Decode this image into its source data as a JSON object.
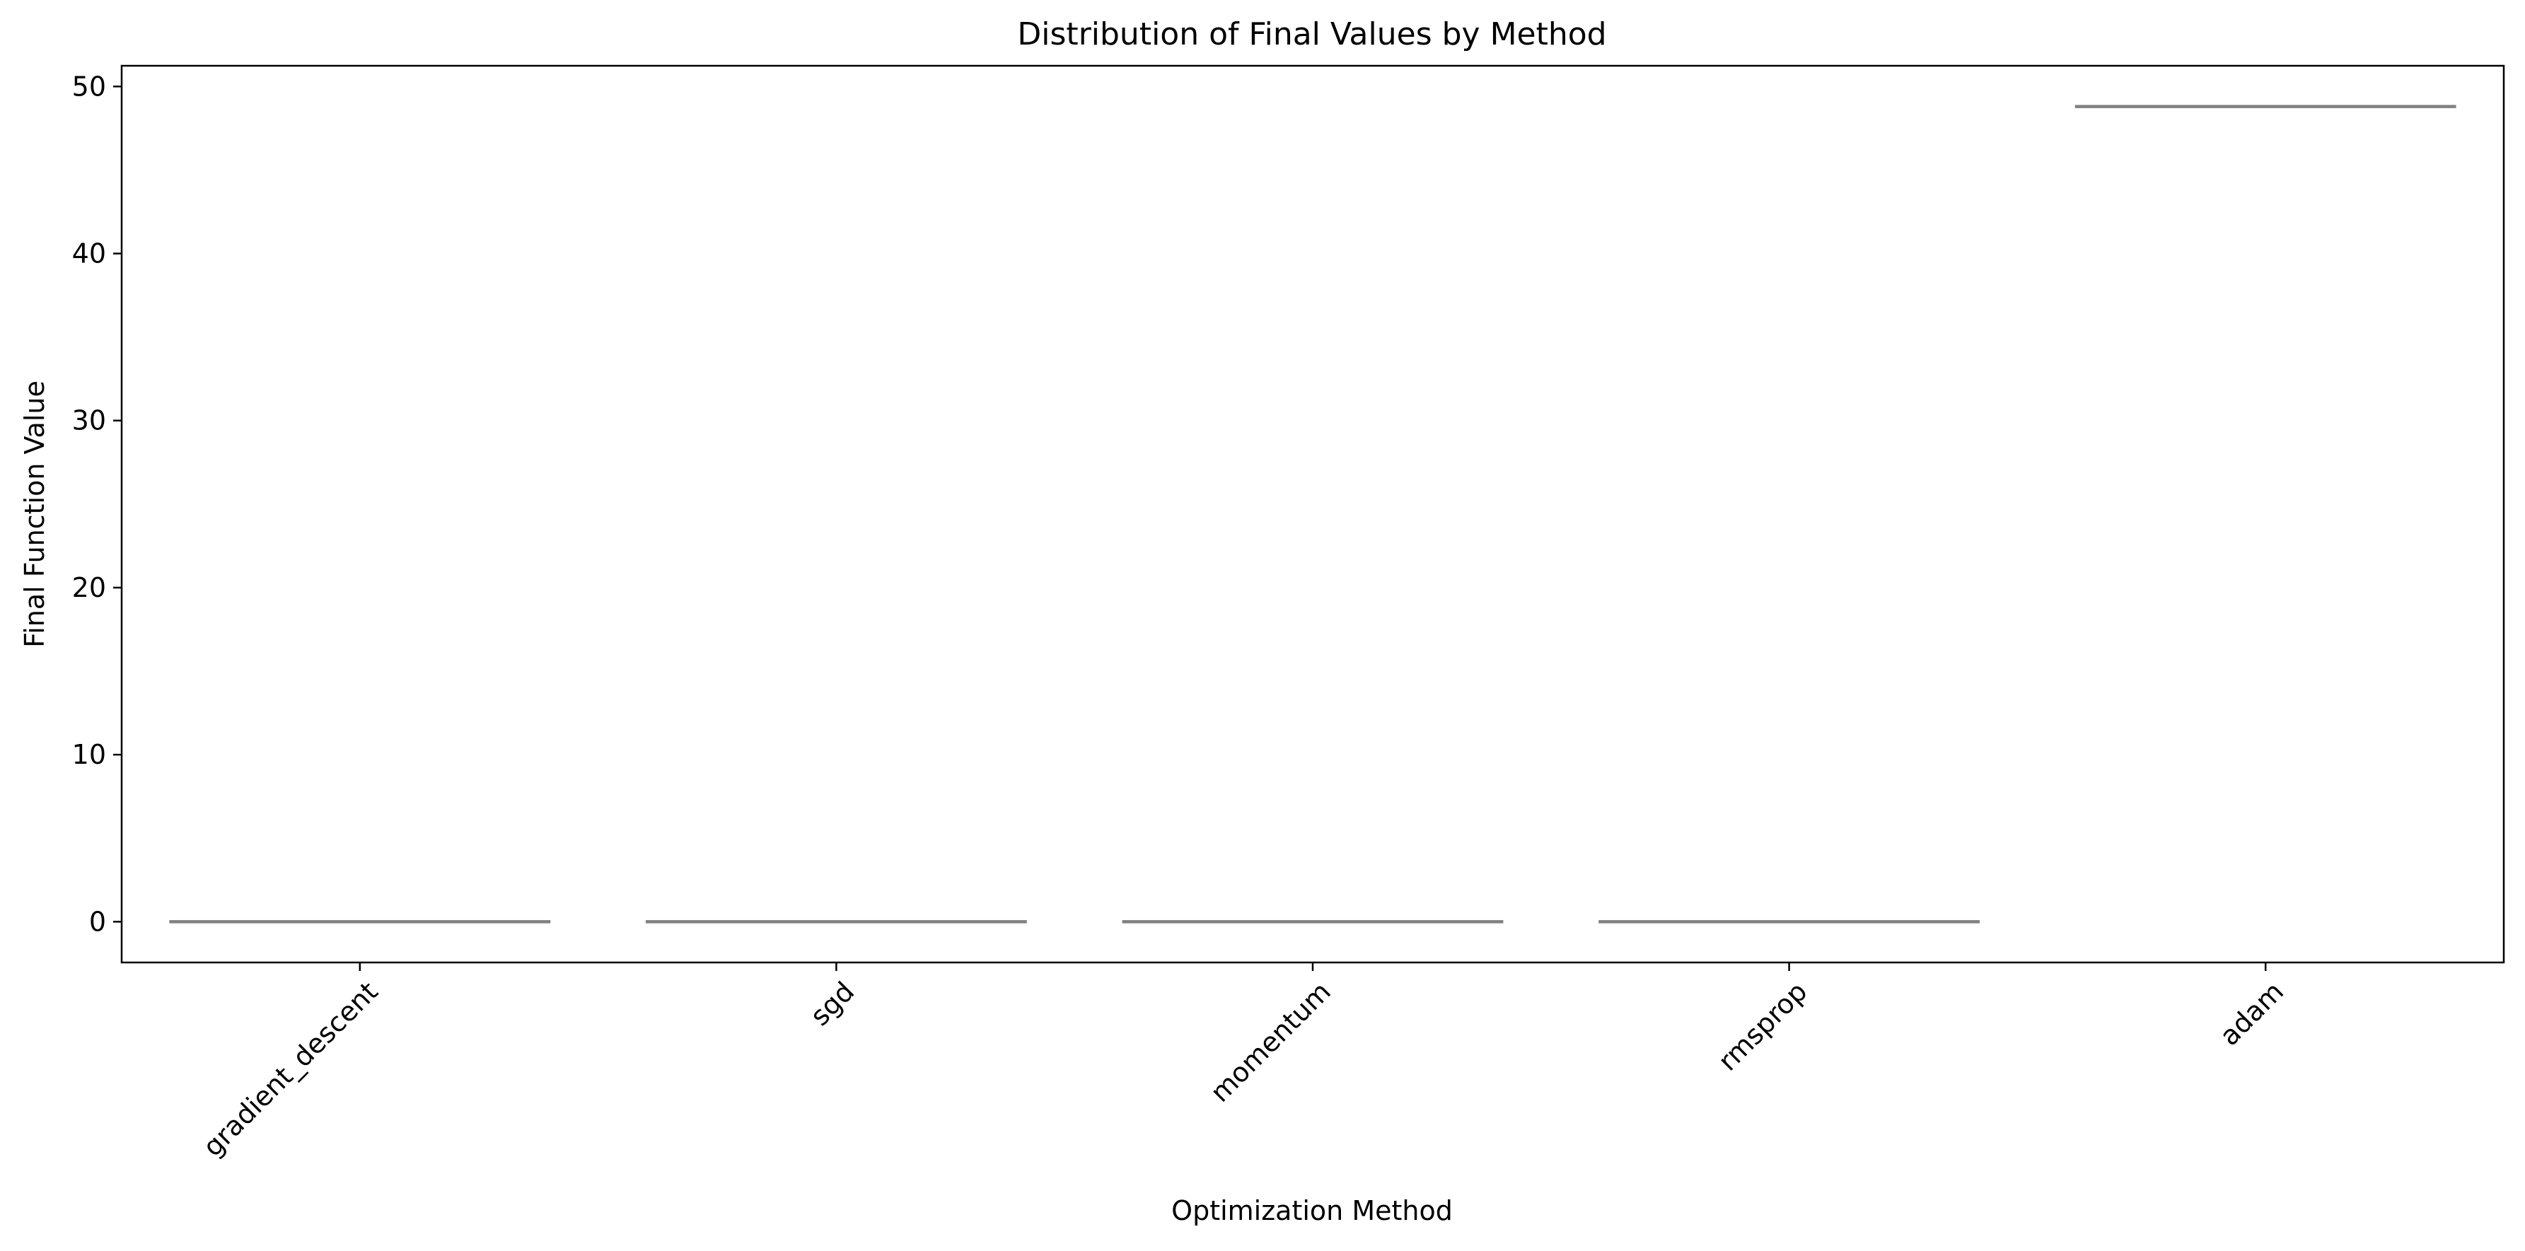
{
  "chart_data": {
    "type": "box",
    "title": "Distribution of Final Values by Method",
    "xlabel": "Optimization Method",
    "ylabel": "Final Function Value",
    "categories": [
      "gradient_descent",
      "sgd",
      "momentum",
      "rmsprop",
      "adam"
    ],
    "values": [
      0,
      0,
      0,
      0,
      48.8
    ],
    "ylim": [
      -2.44,
      51.24
    ],
    "yticks": [
      0,
      10,
      20,
      30,
      40,
      50
    ],
    "xtick_rotation_deg": 45,
    "grid": false,
    "legend": "none",
    "colors": {
      "median_line": "#808080",
      "axes": "#000000",
      "background": "#ffffff"
    }
  }
}
